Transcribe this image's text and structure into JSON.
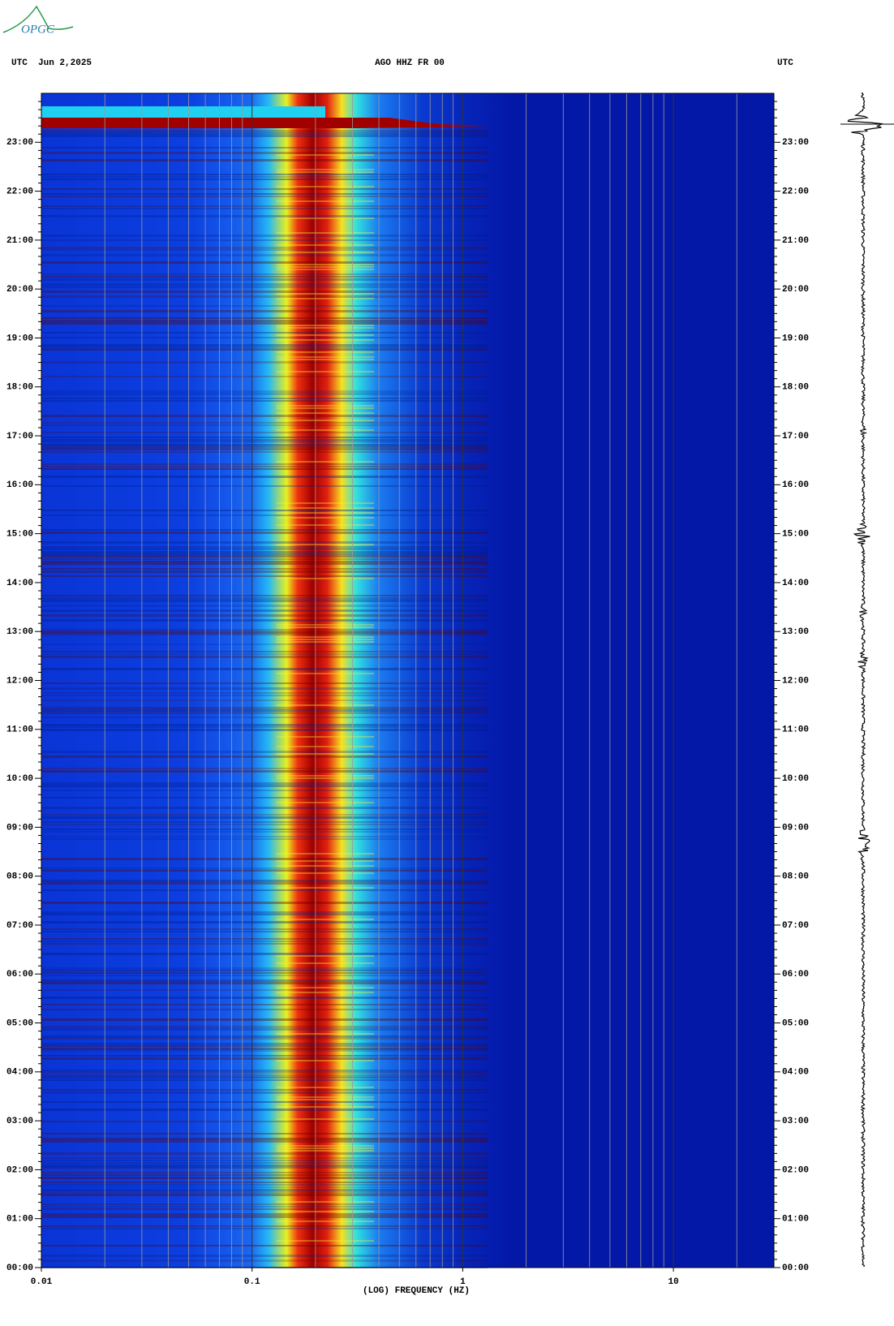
{
  "logo": "OPGC",
  "chart_data": {
    "type": "spectrogram",
    "title": "AGO HHZ FR 00",
    "date_label": "UTC  Jun 2,2025",
    "right_label": "UTC",
    "xlabel": "(LOG) FREQUENCY (HZ)",
    "xscale": "log",
    "xlim": [
      0.01,
      30
    ],
    "xticks": [
      0.01,
      0.1,
      1,
      10
    ],
    "xgrid": [
      0.02,
      0.03,
      0.04,
      0.05,
      0.06,
      0.07,
      0.08,
      0.09,
      0.2,
      0.3,
      0.4,
      0.5,
      0.6,
      0.7,
      0.8,
      0.9,
      2,
      3,
      4,
      5,
      6,
      7,
      8,
      9,
      20
    ],
    "ylim": [
      0,
      24
    ],
    "yticks": [
      {
        "value": 0,
        "label": "00:00"
      },
      {
        "value": 1,
        "label": "01:00"
      },
      {
        "value": 2,
        "label": "02:00"
      },
      {
        "value": 3,
        "label": "03:00"
      },
      {
        "value": 4,
        "label": "04:00"
      },
      {
        "value": 5,
        "label": "05:00"
      },
      {
        "value": 6,
        "label": "06:00"
      },
      {
        "value": 7,
        "label": "07:00"
      },
      {
        "value": 8,
        "label": "08:00"
      },
      {
        "value": 9,
        "label": "09:00"
      },
      {
        "value": 10,
        "label": "10:00"
      },
      {
        "value": 11,
        "label": "11:00"
      },
      {
        "value": 12,
        "label": "12:00"
      },
      {
        "value": 13,
        "label": "13:00"
      },
      {
        "value": 14,
        "label": "14:00"
      },
      {
        "value": 15,
        "label": "15:00"
      },
      {
        "value": 16,
        "label": "16:00"
      },
      {
        "value": 17,
        "label": "17:00"
      },
      {
        "value": 18,
        "label": "18:00"
      },
      {
        "value": 19,
        "label": "19:00"
      },
      {
        "value": 20,
        "label": "20:00"
      },
      {
        "value": 21,
        "label": "21:00"
      },
      {
        "value": 22,
        "label": "22:00"
      },
      {
        "value": 23,
        "label": "23:00"
      }
    ],
    "yminor_divisions": 6
  }
}
